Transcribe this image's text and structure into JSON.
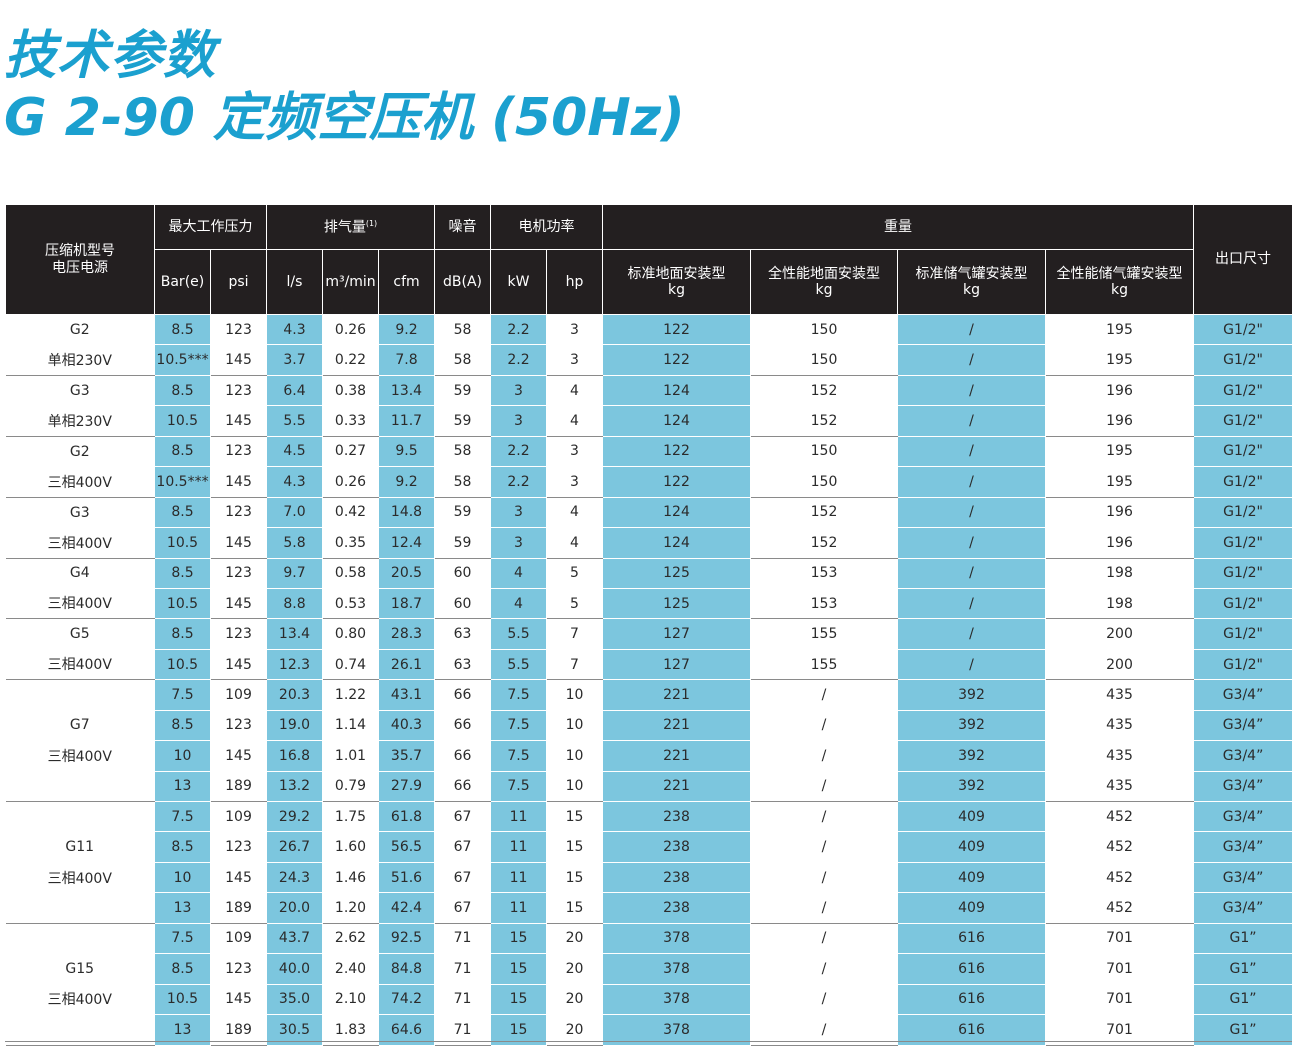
{
  "title": {
    "line1": "技术参数",
    "line2": "G 2-90 定频空压机 (50Hz)"
  },
  "colors": {
    "title": "#1ba0cf",
    "header_bg": "#231f20",
    "highlight": "#7cc6de"
  },
  "header": {
    "model": "压缩机型号",
    "voltage": "电压电源",
    "max_pressure": "最大工作压力",
    "flow": "排气量",
    "flow_note": "(1)",
    "noise": "噪音",
    "motor_power": "电机功率",
    "weight": "重量",
    "outlet": "出口尺寸",
    "bar": "Bar(e)",
    "psi": "psi",
    "ls": "l/s",
    "m3min": "m³/min",
    "cfm": "cfm",
    "dba": "dB(A)",
    "kw": "kW",
    "hp": "hp",
    "w1": "标准地面安装型",
    "w2": "全性能地面安装型",
    "w3": "标准储气罐安装型",
    "w4": "全性能储气罐安装型",
    "kg": "kg"
  },
  "rows": [
    {
      "label": "G2",
      "bar": "8.5",
      "psi": "123",
      "ls": "4.3",
      "m3": "0.26",
      "cfm": "9.2",
      "db": "58",
      "kw": "2.2",
      "hp": "3",
      "w1": "122",
      "w2": "150",
      "w3": "/",
      "w4": "195",
      "outlet": "G1/2\""
    },
    {
      "label": "单相230V",
      "bar": "10.5***",
      "psi": "145",
      "ls": "3.7",
      "m3": "0.22",
      "cfm": "7.8",
      "db": "58",
      "kw": "2.2",
      "hp": "3",
      "w1": "122",
      "w2": "150",
      "w3": "/",
      "w4": "195",
      "outlet": "G1/2\""
    },
    {
      "label": "G3",
      "bar": "8.5",
      "psi": "123",
      "ls": "6.4",
      "m3": "0.38",
      "cfm": "13.4",
      "db": "59",
      "kw": "3",
      "hp": "4",
      "w1": "124",
      "w2": "152",
      "w3": "/",
      "w4": "196",
      "outlet": "G1/2\""
    },
    {
      "label": "单相230V",
      "bar": "10.5",
      "psi": "145",
      "ls": "5.5",
      "m3": "0.33",
      "cfm": "11.7",
      "db": "59",
      "kw": "3",
      "hp": "4",
      "w1": "124",
      "w2": "152",
      "w3": "/",
      "w4": "196",
      "outlet": "G1/2\""
    },
    {
      "label": "G2",
      "bar": "8.5",
      "psi": "123",
      "ls": "4.5",
      "m3": "0.27",
      "cfm": "9.5",
      "db": "58",
      "kw": "2.2",
      "hp": "3",
      "w1": "122",
      "w2": "150",
      "w3": "/",
      "w4": "195",
      "outlet": "G1/2\""
    },
    {
      "label": "三相400V",
      "bar": "10.5***",
      "psi": "145",
      "ls": "4.3",
      "m3": "0.26",
      "cfm": "9.2",
      "db": "58",
      "kw": "2.2",
      "hp": "3",
      "w1": "122",
      "w2": "150",
      "w3": "/",
      "w4": "195",
      "outlet": "G1/2\""
    },
    {
      "label": "G3",
      "bar": "8.5",
      "psi": "123",
      "ls": "7.0",
      "m3": "0.42",
      "cfm": "14.8",
      "db": "59",
      "kw": "3",
      "hp": "4",
      "w1": "124",
      "w2": "152",
      "w3": "/",
      "w4": "196",
      "outlet": "G1/2\""
    },
    {
      "label": "三相400V",
      "bar": "10.5",
      "psi": "145",
      "ls": "5.8",
      "m3": "0.35",
      "cfm": "12.4",
      "db": "59",
      "kw": "3",
      "hp": "4",
      "w1": "124",
      "w2": "152",
      "w3": "/",
      "w4": "196",
      "outlet": "G1/2\""
    },
    {
      "label": "G4",
      "bar": "8.5",
      "psi": "123",
      "ls": "9.7",
      "m3": "0.58",
      "cfm": "20.5",
      "db": "60",
      "kw": "4",
      "hp": "5",
      "w1": "125",
      "w2": "153",
      "w3": "/",
      "w4": "198",
      "outlet": "G1/2\""
    },
    {
      "label": "三相400V",
      "bar": "10.5",
      "psi": "145",
      "ls": "8.8",
      "m3": "0.53",
      "cfm": "18.7",
      "db": "60",
      "kw": "4",
      "hp": "5",
      "w1": "125",
      "w2": "153",
      "w3": "/",
      "w4": "198",
      "outlet": "G1/2\""
    },
    {
      "label": "G5",
      "bar": "8.5",
      "psi": "123",
      "ls": "13.4",
      "m3": "0.80",
      "cfm": "28.3",
      "db": "63",
      "kw": "5.5",
      "hp": "7",
      "w1": "127",
      "w2": "155",
      "w3": "/",
      "w4": "200",
      "outlet": "G1/2\""
    },
    {
      "label": "三相400V",
      "bar": "10.5",
      "psi": "145",
      "ls": "12.3",
      "m3": "0.74",
      "cfm": "26.1",
      "db": "63",
      "kw": "5.5",
      "hp": "7",
      "w1": "127",
      "w2": "155",
      "w3": "/",
      "w4": "200",
      "outlet": "G1/2\""
    },
    {
      "label": "",
      "bar": "7.5",
      "psi": "109",
      "ls": "20.3",
      "m3": "1.22",
      "cfm": "43.1",
      "db": "66",
      "kw": "7.5",
      "hp": "10",
      "w1": "221",
      "w2": "/",
      "w3": "392",
      "w4": "435",
      "outlet": "G3/4”"
    },
    {
      "label": "G7",
      "bar": "8.5",
      "psi": "123",
      "ls": "19.0",
      "m3": "1.14",
      "cfm": "40.3",
      "db": "66",
      "kw": "7.5",
      "hp": "10",
      "w1": "221",
      "w2": "/",
      "w3": "392",
      "w4": "435",
      "outlet": "G3/4”"
    },
    {
      "label": "三相400V",
      "bar": "10",
      "psi": "145",
      "ls": "16.8",
      "m3": "1.01",
      "cfm": "35.7",
      "db": "66",
      "kw": "7.5",
      "hp": "10",
      "w1": "221",
      "w2": "/",
      "w3": "392",
      "w4": "435",
      "outlet": "G3/4”"
    },
    {
      "label": "",
      "bar": "13",
      "psi": "189",
      "ls": "13.2",
      "m3": "0.79",
      "cfm": "27.9",
      "db": "66",
      "kw": "7.5",
      "hp": "10",
      "w1": "221",
      "w2": "/",
      "w3": "392",
      "w4": "435",
      "outlet": "G3/4”"
    },
    {
      "label": "",
      "bar": "7.5",
      "psi": "109",
      "ls": "29.2",
      "m3": "1.75",
      "cfm": "61.8",
      "db": "67",
      "kw": "11",
      "hp": "15",
      "w1": "238",
      "w2": "/",
      "w3": "409",
      "w4": "452",
      "outlet": "G3/4”"
    },
    {
      "label": "G11",
      "bar": "8.5",
      "psi": "123",
      "ls": "26.7",
      "m3": "1.60",
      "cfm": "56.5",
      "db": "67",
      "kw": "11",
      "hp": "15",
      "w1": "238",
      "w2": "/",
      "w3": "409",
      "w4": "452",
      "outlet": "G3/4”"
    },
    {
      "label": "三相400V",
      "bar": "10",
      "psi": "145",
      "ls": "24.3",
      "m3": "1.46",
      "cfm": "51.6",
      "db": "67",
      "kw": "11",
      "hp": "15",
      "w1": "238",
      "w2": "/",
      "w3": "409",
      "w4": "452",
      "outlet": "G3/4”"
    },
    {
      "label": "",
      "bar": "13",
      "psi": "189",
      "ls": "20.0",
      "m3": "1.20",
      "cfm": "42.4",
      "db": "67",
      "kw": "11",
      "hp": "15",
      "w1": "238",
      "w2": "/",
      "w3": "409",
      "w4": "452",
      "outlet": "G3/4”"
    },
    {
      "label": "",
      "bar": "7.5",
      "psi": "109",
      "ls": "43.7",
      "m3": "2.62",
      "cfm": "92.5",
      "db": "71",
      "kw": "15",
      "hp": "20",
      "w1": "378",
      "w2": "/",
      "w3": "616",
      "w4": "701",
      "outlet": "G1”"
    },
    {
      "label": "G15",
      "bar": "8.5",
      "psi": "123",
      "ls": "40.0",
      "m3": "2.40",
      "cfm": "84.8",
      "db": "71",
      "kw": "15",
      "hp": "20",
      "w1": "378",
      "w2": "/",
      "w3": "616",
      "w4": "701",
      "outlet": "G1”"
    },
    {
      "label": "三相400V",
      "bar": "10.5",
      "psi": "145",
      "ls": "35.0",
      "m3": "2.10",
      "cfm": "74.2",
      "db": "71",
      "kw": "15",
      "hp": "20",
      "w1": "378",
      "w2": "/",
      "w3": "616",
      "w4": "701",
      "outlet": "G1”"
    },
    {
      "label": "",
      "bar": "13",
      "psi": "189",
      "ls": "30.5",
      "m3": "1.83",
      "cfm": "64.6",
      "db": "71",
      "kw": "15",
      "hp": "20",
      "w1": "378",
      "w2": "/",
      "w3": "616",
      "w4": "701",
      "outlet": "G1”"
    }
  ]
}
